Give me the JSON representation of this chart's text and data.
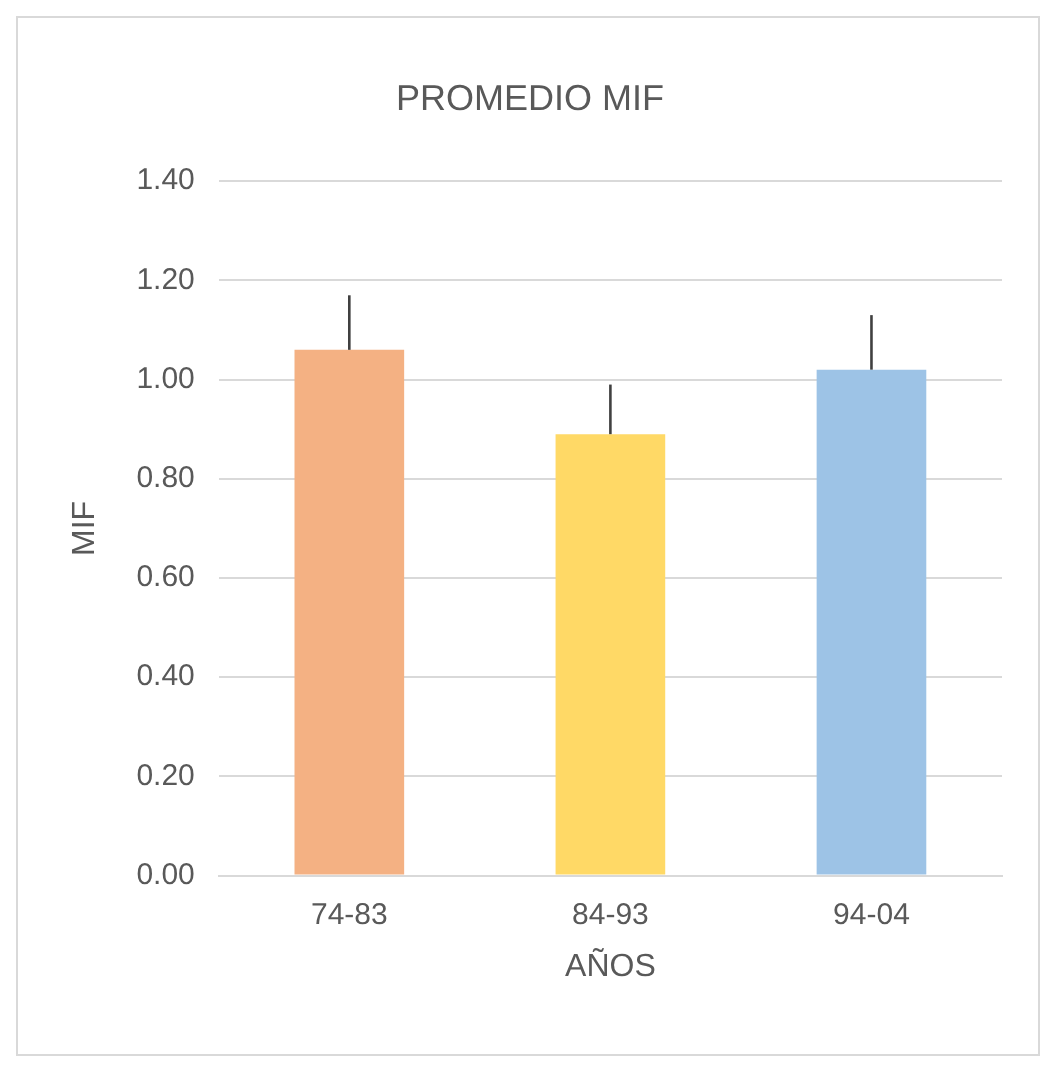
{
  "chart_data": {
    "type": "bar",
    "title": "PROMEDIO MIF",
    "xlabel": "AÑOS",
    "ylabel": "MIF",
    "categories": [
      "74-83",
      "84-93",
      "94-04"
    ],
    "values": [
      1.06,
      0.89,
      1.02
    ],
    "colors": [
      "#f4b183",
      "#ffd966",
      "#9dc3e6"
    ],
    "errors": [
      [
        1.06,
        1.17
      ],
      [
        0.89,
        0.99
      ],
      [
        1.02,
        1.13
      ]
    ],
    "ylim": [
      0,
      1.4
    ],
    "yticks": [
      {
        "value": 0,
        "label": "0.00"
      },
      {
        "value": 0.2,
        "label": "0.20"
      },
      {
        "value": 0.4,
        "label": "0.40"
      },
      {
        "value": 0.6,
        "label": "0.60"
      },
      {
        "value": 0.8,
        "label": "0.80"
      },
      {
        "value": 1,
        "label": "1.00"
      },
      {
        "value": 1.2,
        "label": "1.20"
      },
      {
        "value": 1.4,
        "label": "1.40"
      }
    ],
    "grid": "y",
    "legend": false
  }
}
